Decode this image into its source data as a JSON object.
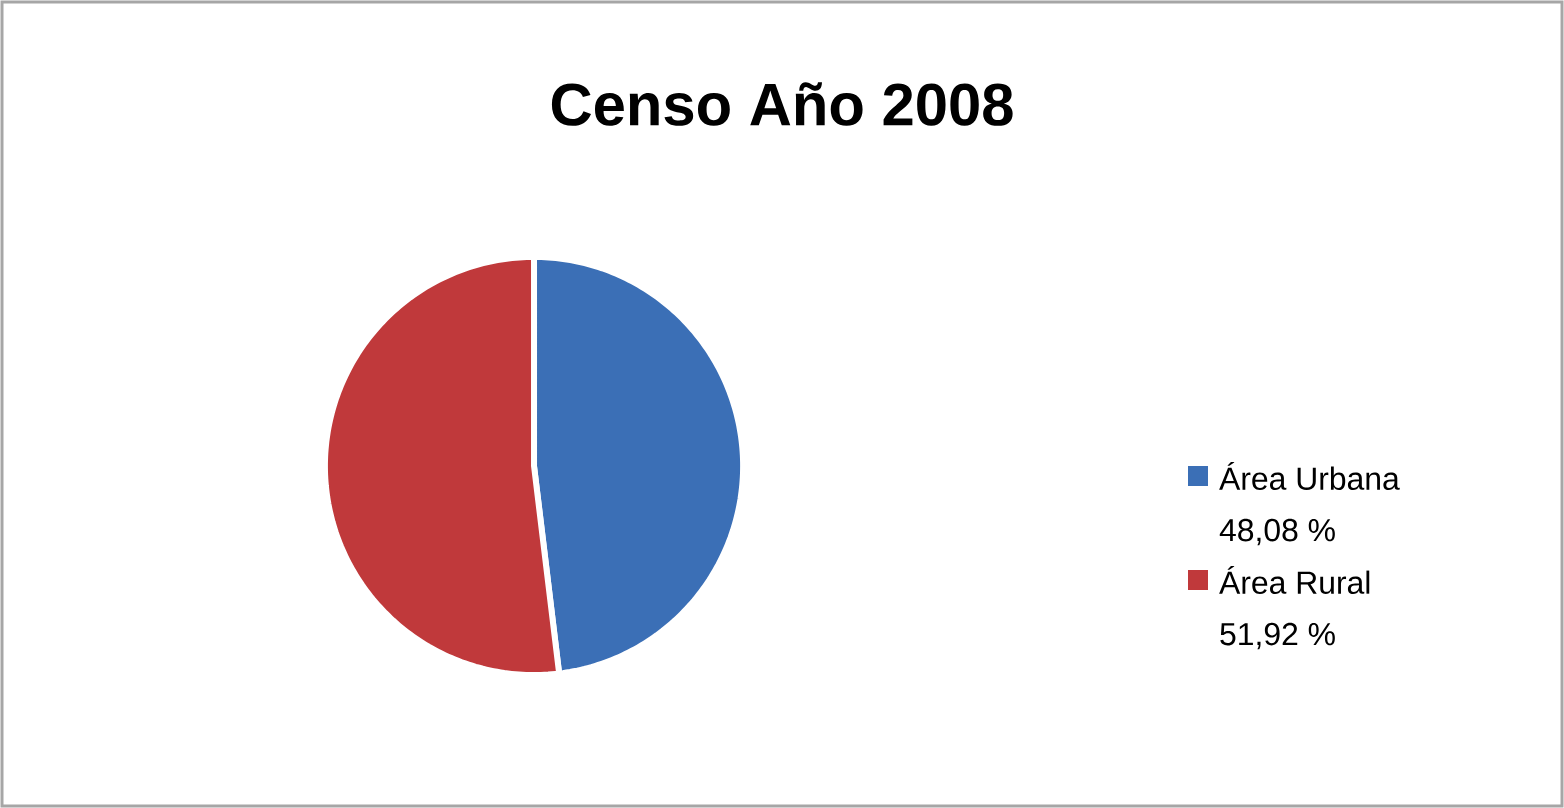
{
  "chart_data": {
    "type": "pie",
    "title": "Censo Año 2008",
    "categories": [
      "Área Urbana",
      "Área Rural"
    ],
    "values": [
      48.08,
      51.92
    ],
    "value_labels": [
      "48,08 %",
      "51,92 %"
    ],
    "colors": [
      "#3b6fb6",
      "#c0393b"
    ],
    "legend": "right"
  }
}
